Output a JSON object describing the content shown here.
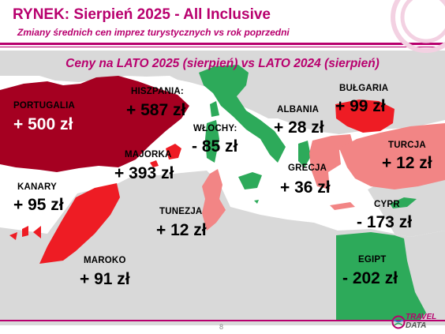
{
  "header": {
    "title": "RYNEK: Sierpień 2025 - All Inclusive",
    "subtitle": "Zmiany średnich cen imprez turystycznych vs rok poprzedni"
  },
  "map_title": "Ceny na LATO 2025 (sierpień) vs  LATO 2024 (sierpień)",
  "destinations": {
    "portugalia": {
      "name": "PORTUGALIA",
      "change": "+ 500 zł"
    },
    "hiszpania": {
      "name": "HISZPANIA:",
      "change": "+ 587 zł"
    },
    "majorka": {
      "name": "MAJORKA",
      "change": "+ 393 zł"
    },
    "kanary": {
      "name": "KANARY",
      "change": "+ 95 zł"
    },
    "maroko": {
      "name": "MAROKO",
      "change": "+ 91 zł"
    },
    "tunezja": {
      "name": "TUNEZJA",
      "change": "+ 12 zł"
    },
    "wlochy": {
      "name": "WŁOCHY:",
      "change": "- 85 zł"
    },
    "albania": {
      "name": "ALBANIA",
      "change": "+ 28 zł"
    },
    "bulgaria": {
      "name": "BUŁGARIA",
      "change": "+ 99 zł"
    },
    "turcja": {
      "name": "TURCJA",
      "change": "+ 12 zł"
    },
    "grecja": {
      "name": "GRECJA",
      "change": "+ 36 zł"
    },
    "cypr": {
      "name": "CYPR",
      "change": "- 173 zł"
    },
    "egipt": {
      "name": "EGIPT",
      "change": "- 202 zł"
    }
  },
  "footer": {
    "page_number": "8"
  },
  "logo": {
    "line1": "TRAVEL",
    "line2": "DATA"
  },
  "colors": {
    "brand": "#b8006e",
    "large_increase": "#a50021",
    "increase": "#ee1c24",
    "small_increase": "#f28585",
    "decrease": "#2daa5a",
    "land": "#d9d9d9"
  }
}
